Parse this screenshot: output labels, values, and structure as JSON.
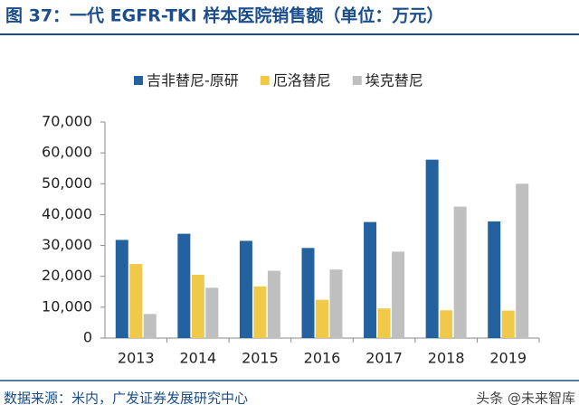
{
  "chart_data": {
    "type": "bar",
    "title": "图 37：一代 EGFR-TKI 样本医院销售额（单位：万元）",
    "categories": [
      "2013",
      "2014",
      "2015",
      "2016",
      "2017",
      "2018",
      "2019"
    ],
    "series": [
      {
        "name": "吉非替尼-原研",
        "color": "#23629f",
        "values": [
          31800,
          33800,
          31500,
          29200,
          37600,
          57800,
          37800
        ]
      },
      {
        "name": "厄洛替尼",
        "color": "#f0c94a",
        "values": [
          24000,
          20500,
          16700,
          12400,
          9600,
          9000,
          8900
        ]
      },
      {
        "name": "埃克替尼",
        "color": "#bfbfbf",
        "values": [
          7800,
          16300,
          21800,
          22200,
          28000,
          42600,
          50000
        ]
      }
    ],
    "ylim": [
      0,
      70000
    ],
    "yticks": [
      0,
      {
        "value": 10000,
        "label": "10,000"
      },
      {
        "value": 20000,
        "label": "20,000"
      },
      {
        "value": 30000,
        "label": "30,000"
      },
      {
        "value": 40000,
        "label": "40,000"
      },
      {
        "value": 50000,
        "label": "50,000"
      },
      {
        "value": 60000,
        "label": "60,000"
      },
      {
        "value": 70000,
        "label": "70,000"
      }
    ],
    "grid": false,
    "legend": "top",
    "source": "数据来源：米内，广发证券发展研究中心",
    "watermark": "头条 @未来智库"
  }
}
